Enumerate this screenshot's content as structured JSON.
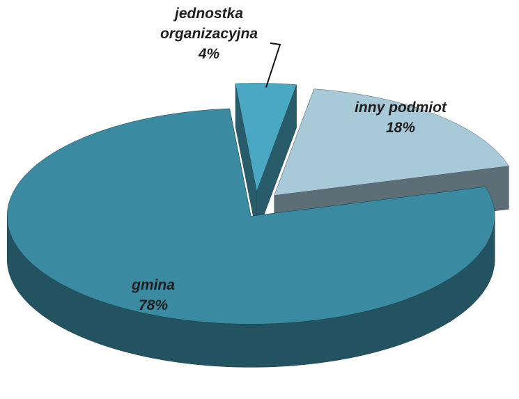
{
  "chart_data": {
    "type": "pie",
    "categories": [
      "gmina",
      "jednostka organizacyjna",
      "inny podmiot"
    ],
    "values": [
      78,
      4,
      18
    ],
    "value_labels": [
      "78%",
      "4%",
      "18%"
    ],
    "colors": [
      "#3a8ba1",
      "#4aa8c3",
      "#a8cad8"
    ]
  }
}
